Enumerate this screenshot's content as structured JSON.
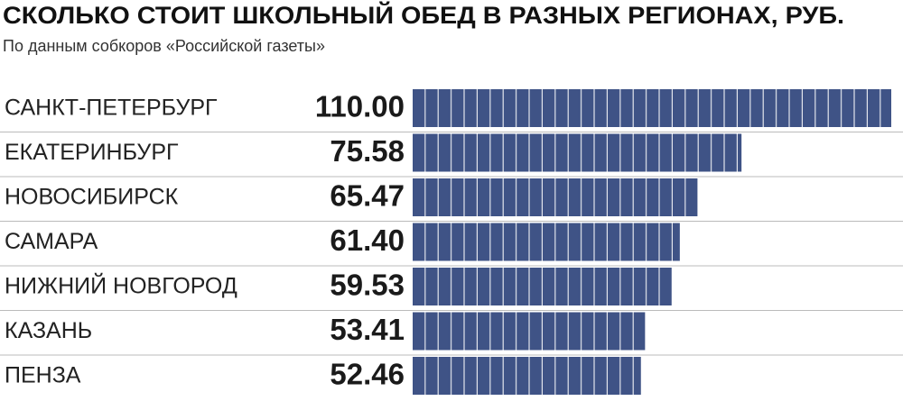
{
  "chart_data": {
    "type": "bar",
    "orientation": "horizontal",
    "title": "СКОЛЬКО СТОИТ ШКОЛЬНЫЙ ОБЕД В РАЗНЫХ РЕГИОНАХ, РУБ.",
    "subtitle": "По данным собкоров «Российской газеты»",
    "categories": [
      "САНКТ-ПЕТЕРБУРГ",
      "ЕКАТЕРИНБУРГ",
      "НОВОСИБИРСК",
      "САМАРА",
      "НИЖНИЙ НОВГОРОД",
      "КАЗАНЬ",
      "ПЕНЗА"
    ],
    "values": [
      110,
      75.58,
      65.47,
      61.4,
      59.53,
      53.41,
      52.46
    ],
    "value_labels": [
      "110.00",
      "75.58",
      "65.47",
      "61.40",
      "59.53",
      "53.41",
      "52.46"
    ],
    "color": "#3f5386"
  }
}
